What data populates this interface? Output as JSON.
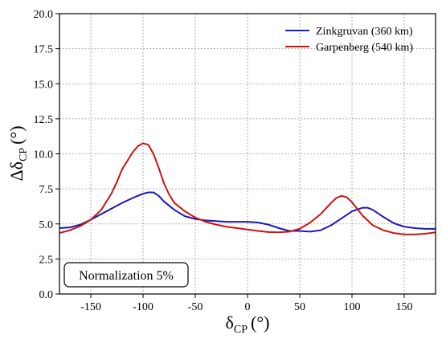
{
  "chart_data": {
    "type": "line",
    "xlabel": "δ",
    "xlabel_sub": "CP",
    "xlabel_unit": "(°)",
    "ylabel": "Δδ",
    "ylabel_sub": "CP",
    "ylabel_unit": "(°)",
    "xlim": [
      -180,
      180
    ],
    "ylim": [
      0,
      20
    ],
    "xticks": [
      -150,
      -100,
      -50,
      0,
      50,
      100,
      150
    ],
    "yticks": [
      0.0,
      2.5,
      5.0,
      7.5,
      10.0,
      12.5,
      15.0,
      17.5,
      20.0
    ],
    "ytick_labels": [
      "0.0",
      "2.5",
      "5.0",
      "7.5",
      "10.0",
      "12.5",
      "15.0",
      "17.5",
      "20.0"
    ],
    "grid": true,
    "legend_position": "top-right",
    "annotation": "Normalization 5%",
    "series": [
      {
        "name": "Zinkgruvan (360 km)",
        "color": "#1a1ab8",
        "x": [
          -180,
          -170,
          -160,
          -150,
          -140,
          -130,
          -120,
          -110,
          -100,
          -95,
          -90,
          -85,
          -80,
          -70,
          -60,
          -50,
          -40,
          -30,
          -20,
          -10,
          0,
          10,
          20,
          30,
          40,
          50,
          60,
          70,
          80,
          90,
          100,
          110,
          115,
          120,
          130,
          140,
          150,
          160,
          170,
          180
        ],
        "values": [
          4.7,
          4.75,
          4.95,
          5.3,
          5.7,
          6.1,
          6.5,
          6.85,
          7.15,
          7.25,
          7.25,
          7.0,
          6.6,
          6.0,
          5.55,
          5.35,
          5.25,
          5.2,
          5.15,
          5.15,
          5.15,
          5.1,
          4.95,
          4.7,
          4.5,
          4.5,
          4.45,
          4.55,
          4.9,
          5.4,
          5.9,
          6.15,
          6.15,
          6.0,
          5.5,
          5.05,
          4.8,
          4.7,
          4.65,
          4.65
        ]
      },
      {
        "name": "Garpenberg (540 km)",
        "color": "#cc1111",
        "x": [
          -180,
          -170,
          -160,
          -150,
          -140,
          -130,
          -125,
          -120,
          -115,
          -110,
          -105,
          -100,
          -95,
          -90,
          -85,
          -80,
          -75,
          -70,
          -60,
          -50,
          -40,
          -30,
          -20,
          -10,
          0,
          10,
          20,
          30,
          40,
          50,
          60,
          70,
          80,
          85,
          90,
          95,
          100,
          110,
          120,
          130,
          140,
          150,
          160,
          170,
          180
        ],
        "values": [
          4.35,
          4.55,
          4.85,
          5.3,
          6.0,
          7.2,
          8.0,
          8.9,
          9.5,
          10.1,
          10.55,
          10.75,
          10.65,
          10.0,
          9.0,
          7.9,
          7.1,
          6.5,
          5.9,
          5.45,
          5.15,
          4.95,
          4.8,
          4.7,
          4.6,
          4.5,
          4.42,
          4.4,
          4.45,
          4.65,
          5.1,
          5.7,
          6.5,
          6.85,
          7.0,
          6.9,
          6.55,
          5.6,
          4.9,
          4.55,
          4.35,
          4.25,
          4.25,
          4.3,
          4.4
        ]
      }
    ]
  }
}
